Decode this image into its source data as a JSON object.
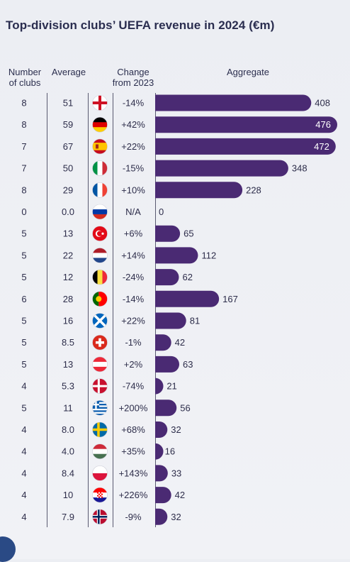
{
  "title": "Top-division clubs’ UEFA revenue in 2024 (€m)",
  "headers": {
    "num_clubs": [
      "Number",
      "of clubs"
    ],
    "average": "Average",
    "change": [
      "Change",
      "from 2023"
    ],
    "aggregate": "Aggregate"
  },
  "colors": {
    "bar": "#4a2a73",
    "text": "#2d2d4a",
    "inside_label": "#ffffff"
  },
  "chart_data": {
    "type": "bar",
    "orientation": "horizontal",
    "series": [
      {
        "name": "Aggregate",
        "values": [
          408,
          476,
          472,
          348,
          228,
          0,
          65,
          112,
          62,
          167,
          81,
          42,
          63,
          21,
          56,
          32,
          16,
          33,
          42,
          32
        ]
      }
    ],
    "rows": [
      {
        "flag": "england-flag-icon",
        "clubs": "8",
        "average": "51",
        "change": "-14%",
        "aggregate": 408
      },
      {
        "flag": "germany-flag-icon",
        "clubs": "8",
        "average": "59",
        "change": "+42%",
        "aggregate": 476
      },
      {
        "flag": "spain-flag-icon",
        "clubs": "7",
        "average": "67",
        "change": "+22%",
        "aggregate": 472
      },
      {
        "flag": "italy-flag-icon",
        "clubs": "7",
        "average": "50",
        "change": "-15%",
        "aggregate": 348
      },
      {
        "flag": "france-flag-icon",
        "clubs": "8",
        "average": "29",
        "change": "+10%",
        "aggregate": 228
      },
      {
        "flag": "russia-flag-icon",
        "clubs": "0",
        "average": "0.0",
        "change": "N/A",
        "aggregate": 0
      },
      {
        "flag": "turkey-flag-icon",
        "clubs": "5",
        "average": "13",
        "change": "+6%",
        "aggregate": 65
      },
      {
        "flag": "netherlands-flag-icon",
        "clubs": "5",
        "average": "22",
        "change": "+14%",
        "aggregate": 112
      },
      {
        "flag": "belgium-flag-icon",
        "clubs": "5",
        "average": "12",
        "change": "-24%",
        "aggregate": 62
      },
      {
        "flag": "portugal-flag-icon",
        "clubs": "6",
        "average": "28",
        "change": "-14%",
        "aggregate": 167
      },
      {
        "flag": "scotland-flag-icon",
        "clubs": "5",
        "average": "16",
        "change": "+22%",
        "aggregate": 81
      },
      {
        "flag": "switzerland-flag-icon",
        "clubs": "5",
        "average": "8.5",
        "change": "-1%",
        "aggregate": 42
      },
      {
        "flag": "austria-flag-icon",
        "clubs": "5",
        "average": "13",
        "change": "+2%",
        "aggregate": 63
      },
      {
        "flag": "denmark-flag-icon",
        "clubs": "4",
        "average": "5.3",
        "change": "-74%",
        "aggregate": 21
      },
      {
        "flag": "greece-flag-icon",
        "clubs": "5",
        "average": "11",
        "change": "+200%",
        "aggregate": 56
      },
      {
        "flag": "sweden-flag-icon",
        "clubs": "4",
        "average": "8.0",
        "change": "+68%",
        "aggregate": 32
      },
      {
        "flag": "hungary-flag-icon",
        "clubs": "4",
        "average": "4.0",
        "change": "+35%",
        "aggregate": 16
      },
      {
        "flag": "poland-flag-icon",
        "clubs": "4",
        "average": "8.4",
        "change": "+143%",
        "aggregate": 33
      },
      {
        "flag": "croatia-flag-icon",
        "clubs": "4",
        "average": "10",
        "change": "+226%",
        "aggregate": 42
      },
      {
        "flag": "norway-flag-icon",
        "clubs": "4",
        "average": "7.9",
        "change": "-9%",
        "aggregate": 32
      }
    ]
  }
}
